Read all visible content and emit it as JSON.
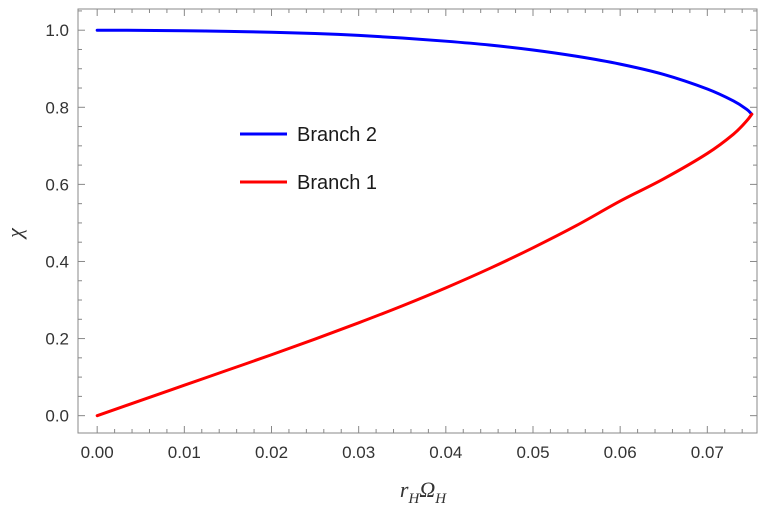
{
  "chart_data": {
    "type": "line",
    "xlabel_main": "r",
    "xlabel_sub1": "H",
    "xlabel_mid": "Ω",
    "xlabel_sub2": "H",
    "ylabel": "χ",
    "xlim": [
      -0.0022,
      0.0757
    ],
    "ylim": [
      -0.045,
      1.055
    ],
    "xticks": [
      "0.00",
      "0.01",
      "0.02",
      "0.03",
      "0.04",
      "0.05",
      "0.06",
      "0.07"
    ],
    "xtick_values": [
      0,
      0.01,
      0.02,
      0.03,
      0.04,
      0.05,
      0.06,
      0.07
    ],
    "yticks": [
      "0.0",
      "0.2",
      "0.4",
      "0.6",
      "0.8",
      "1.0"
    ],
    "ytick_values": [
      0,
      0.2,
      0.4,
      0.6,
      0.8,
      1.0
    ],
    "legend_position": "center-left",
    "series": [
      {
        "name": "Branch 2",
        "color": "#0000ff",
        "points": [
          [
            0.0,
            1.0
          ],
          [
            0.005,
            0.9996
          ],
          [
            0.01,
            0.9985
          ],
          [
            0.015,
            0.997
          ],
          [
            0.02,
            0.9948
          ],
          [
            0.025,
            0.9915
          ],
          [
            0.03,
            0.9866
          ],
          [
            0.035,
            0.9797
          ],
          [
            0.04,
            0.9715
          ],
          [
            0.045,
            0.9616
          ],
          [
            0.05,
            0.9487
          ],
          [
            0.055,
            0.9324
          ],
          [
            0.06,
            0.912
          ],
          [
            0.065,
            0.8852
          ],
          [
            0.07,
            0.8474
          ],
          [
            0.073,
            0.8164
          ],
          [
            0.0745,
            0.795
          ],
          [
            0.0751,
            0.782
          ]
        ]
      },
      {
        "name": "Branch 1",
        "color": "#ff0000",
        "points": [
          [
            0.0,
            0.0
          ],
          [
            0.005,
            0.0395
          ],
          [
            0.01,
            0.079
          ],
          [
            0.015,
            0.1184
          ],
          [
            0.02,
            0.158
          ],
          [
            0.025,
            0.1987
          ],
          [
            0.03,
            0.2409
          ],
          [
            0.035,
            0.2849
          ],
          [
            0.04,
            0.3316
          ],
          [
            0.045,
            0.3816
          ],
          [
            0.05,
            0.4355
          ],
          [
            0.055,
            0.4934
          ],
          [
            0.06,
            0.5566
          ],
          [
            0.065,
            0.6145
          ],
          [
            0.07,
            0.6803
          ],
          [
            0.073,
            0.7303
          ],
          [
            0.0745,
            0.7645
          ],
          [
            0.0751,
            0.782
          ]
        ]
      }
    ]
  }
}
